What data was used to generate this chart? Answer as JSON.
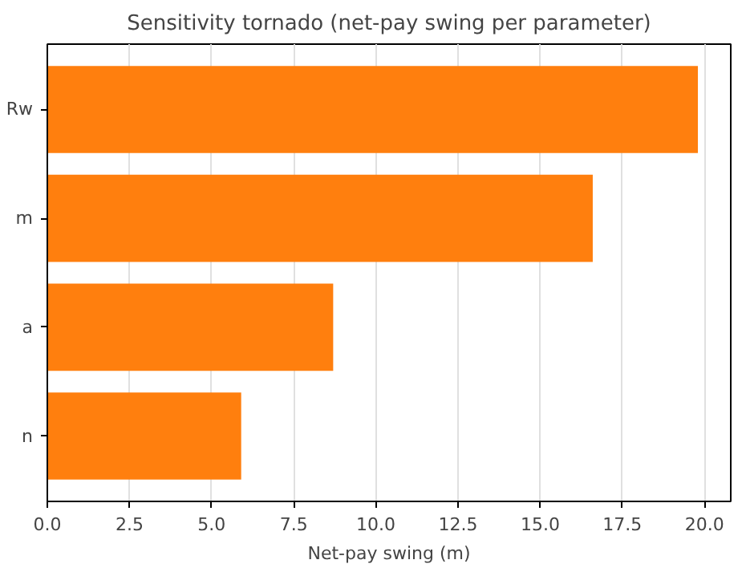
{
  "chart_data": {
    "type": "bar",
    "orientation": "horizontal",
    "title": "Sensitivity tornado (net-pay swing per parameter)",
    "xlabel": "Net-pay swing (m)",
    "categories": [
      "Rw",
      "m",
      "a",
      "n"
    ],
    "series": [
      {
        "color": "#ff7f0e",
        "values": [
          19.8,
          16.6,
          8.7,
          5.9
        ]
      }
    ],
    "xlim": [
      0,
      20.8
    ],
    "xticks": [
      {
        "value": 0,
        "label": "0.0"
      },
      2.5,
      {
        "value": 5,
        "label": "5.0"
      },
      7.5,
      {
        "value": 10,
        "label": "10.0"
      },
      12.5,
      {
        "value": 15,
        "label": "15.0"
      },
      17.5,
      {
        "value": 20,
        "label": "20.0"
      }
    ],
    "grid": "x"
  }
}
